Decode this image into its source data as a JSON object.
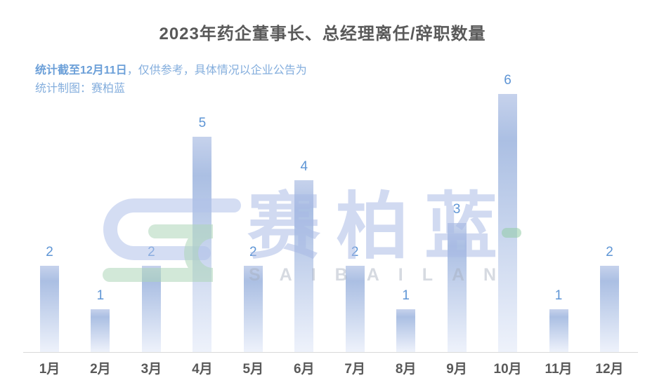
{
  "header": {
    "title": "2023年药企董事长、总经理离任/辞职数量",
    "subtitle_bold": "统计截至12月11日",
    "subtitle_rest": "，仅供参考，具体情况以企业公告为",
    "subtitle_line2": "统计制图：赛柏蓝"
  },
  "watermark": {
    "logo": "saibailan-logo",
    "brand_cn": "赛柏蓝",
    "brand_en": "SAIBAILAN"
  },
  "colors": {
    "title": "#595959",
    "subtitle": "#84aedd",
    "subtitleBold": "#6b9fd8",
    "valueLabel": "#5e95d5",
    "axisLabel": "#595959",
    "axisLine": "#d9d9d9",
    "barTop": "#c6d2ec",
    "barMid": "#abbfe3",
    "barBottom": "#eef2fb",
    "wmCn": "rgba(167,185,228,0.52)",
    "wmEn": "rgba(164,173,189,0.45)",
    "wmBlue": "rgba(176,193,233,0.55)",
    "wmGreen": "rgba(173,214,184,0.55)",
    "wmGreen2": "rgba(146,204,166,0.55)"
  },
  "chart_data": {
    "type": "bar",
    "categories": [
      "1月",
      "2月",
      "3月",
      "4月",
      "5月",
      "6月",
      "7月",
      "8月",
      "9月",
      "10月",
      "11月",
      "12月"
    ],
    "values": [
      2,
      1,
      2,
      5,
      2,
      4,
      2,
      1,
      3,
      6,
      1,
      2
    ],
    "title": "2023年药企董事长、总经理离任/辞职数量",
    "xlabel": "",
    "ylabel": "",
    "ylim": [
      0,
      6
    ],
    "grid": false,
    "legend": false,
    "value_labels_shown": true,
    "baseline_axis_only": true
  }
}
